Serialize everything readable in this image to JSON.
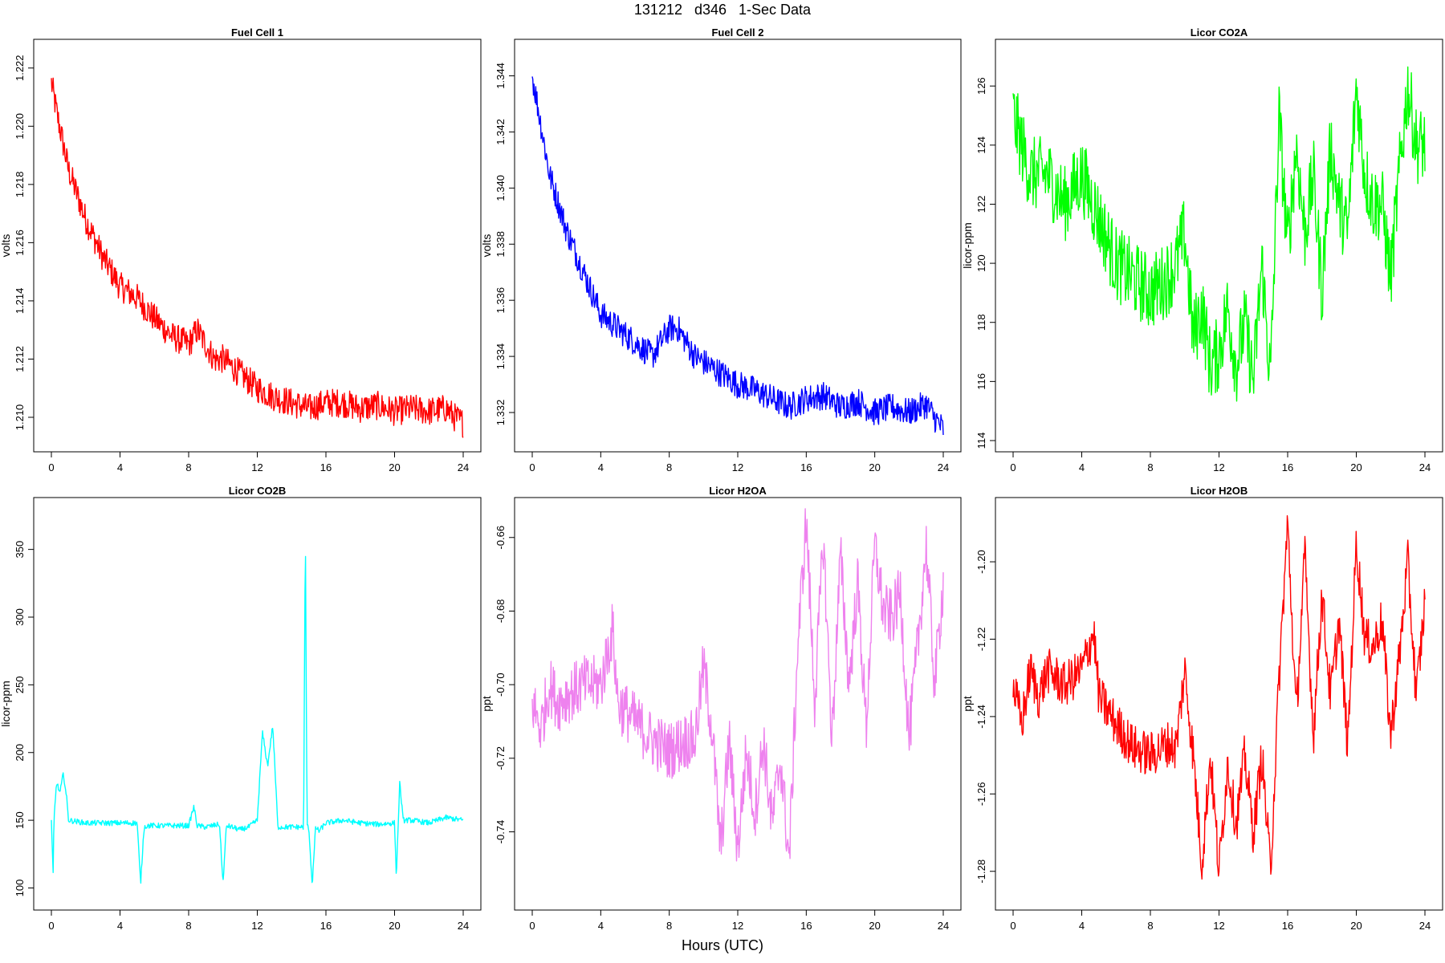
{
  "figure": {
    "title": "131212   d346   1-Sec Data",
    "xlabel": "Hours (UTC)"
  },
  "chart_data": [
    {
      "type": "line",
      "title": "Fuel Cell 1",
      "ylabel": "volts",
      "color": "#ff0000",
      "xlim": [
        0,
        24
      ],
      "ylim": [
        1.2092,
        1.2226
      ],
      "xticks": [
        0,
        4,
        8,
        12,
        16,
        20,
        24
      ],
      "yticks": [
        1.21,
        1.212,
        1.214,
        1.216,
        1.218,
        1.22,
        1.222
      ],
      "ytick_labels": [
        "1.210",
        "1.212",
        "1.214",
        "1.216",
        "1.218",
        "1.220",
        "1.222"
      ],
      "x": [
        0,
        0.3,
        1,
        2,
        3,
        4,
        5,
        6,
        7,
        8,
        8.5,
        9.5,
        10,
        11,
        12,
        13,
        14,
        15,
        16,
        17,
        18,
        19,
        20,
        21,
        22,
        23,
        23.5,
        24
      ],
      "y": [
        1.2215,
        1.2205,
        1.2185,
        1.2168,
        1.2155,
        1.2145,
        1.2141,
        1.2134,
        1.2128,
        1.2125,
        1.213,
        1.212,
        1.212,
        1.2115,
        1.211,
        1.2107,
        1.2105,
        1.2103,
        1.2105,
        1.2105,
        1.2103,
        1.2104,
        1.2102,
        1.2103,
        1.2102,
        1.2103,
        1.21,
        1.2098
      ],
      "noise": 0.0005
    },
    {
      "type": "line",
      "title": "Fuel Cell 2",
      "ylabel": "volts",
      "color": "#0000ff",
      "xlim": [
        0,
        24
      ],
      "ylim": [
        1.331,
        1.3449
      ],
      "xticks": [
        0,
        4,
        8,
        12,
        16,
        20,
        24
      ],
      "yticks": [
        1.332,
        1.334,
        1.336,
        1.338,
        1.34,
        1.342,
        1.344
      ],
      "ytick_labels": [
        "1.332",
        "1.334",
        "1.336",
        "1.338",
        "1.340",
        "1.342",
        "1.344"
      ],
      "x": [
        0,
        0.3,
        1,
        2,
        3,
        4,
        5,
        6,
        7,
        8,
        8.5,
        9.5,
        10,
        11,
        12,
        13,
        14,
        15,
        16,
        17,
        18,
        19,
        20,
        21,
        22,
        23,
        23.5,
        24
      ],
      "y": [
        1.344,
        1.343,
        1.3405,
        1.3385,
        1.337,
        1.3355,
        1.335,
        1.3345,
        1.334,
        1.335,
        1.335,
        1.334,
        1.3338,
        1.3334,
        1.333,
        1.3328,
        1.3325,
        1.3322,
        1.3325,
        1.3326,
        1.3322,
        1.3324,
        1.332,
        1.3322,
        1.332,
        1.3323,
        1.3318,
        1.3314
      ],
      "noise": 0.0005
    },
    {
      "type": "line",
      "title": "Licor CO2A",
      "ylabel": "licor-ppm",
      "color": "#00ff00",
      "xlim": [
        0,
        24
      ],
      "ylim": [
        114,
        127.2
      ],
      "xticks": [
        0,
        4,
        8,
        12,
        16,
        20,
        24
      ],
      "yticks": [
        114,
        116,
        118,
        120,
        122,
        124,
        126
      ],
      "ytick_labels": [
        "114",
        "116",
        "118",
        "120",
        "122",
        "124",
        "126"
      ],
      "x": [
        0,
        1,
        2,
        3,
        4,
        5,
        6,
        7,
        8,
        9,
        9.5,
        10,
        10.5,
        11,
        11.5,
        12,
        12.5,
        13,
        13.5,
        14,
        14.5,
        15,
        15.5,
        16,
        16.5,
        17,
        17.5,
        18,
        18.5,
        19,
        19.5,
        20,
        20.5,
        21,
        21.5,
        22,
        22.5,
        23,
        23.5,
        24
      ],
      "y": [
        125,
        123,
        123,
        122,
        123,
        121.5,
        120,
        119.5,
        119,
        119.5,
        120,
        121,
        117.5,
        118.5,
        116.5,
        117,
        118.5,
        116.5,
        118,
        116,
        120,
        116,
        125,
        120.5,
        124,
        121,
        123,
        119,
        124,
        122,
        121,
        126,
        123,
        122,
        122,
        119.5,
        123,
        126,
        124,
        124
      ],
      "noise": 1.3
    },
    {
      "type": "line",
      "title": "Licor CO2B",
      "ylabel": "licor-ppm",
      "color": "#00ffff",
      "xlim": [
        0,
        24
      ],
      "ylim": [
        92,
        380
      ],
      "xticks": [
        0,
        4,
        8,
        12,
        16,
        20,
        24
      ],
      "yticks": [
        100,
        150,
        200,
        250,
        300,
        350
      ],
      "ytick_labels": [
        "100",
        "150",
        "200",
        "250",
        "300",
        "350"
      ],
      "x": [
        0,
        0.1,
        0.15,
        0.3,
        0.5,
        0.7,
        0.9,
        1,
        2,
        4,
        5,
        5.2,
        5.4,
        5.6,
        6,
        8,
        8.3,
        8.5,
        9,
        9.8,
        10,
        10.2,
        10.5,
        11,
        11.5,
        12,
        12.3,
        12.6,
        12.9,
        13.2,
        14,
        14.7,
        14.8,
        14.9,
        15,
        15.2,
        15.4,
        15.6,
        16,
        17,
        18,
        19,
        20,
        20.1,
        20.3,
        20.5,
        21,
        22,
        23,
        24
      ],
      "y": [
        150,
        108,
        150,
        178,
        170,
        185,
        165,
        150,
        148,
        148,
        148,
        103,
        145,
        146,
        146,
        146,
        160,
        146,
        145,
        147,
        103,
        146,
        145,
        143,
        145,
        150,
        215,
        190,
        220,
        145,
        145,
        145,
        370,
        145,
        145,
        102,
        145,
        142,
        148,
        150,
        148,
        147,
        148,
        108,
        178,
        150,
        150,
        148,
        152,
        150
      ],
      "noise": 2
    },
    {
      "type": "line",
      "title": "Licor H2OA",
      "ylabel": "ppt",
      "color": "#ee82ee",
      "xlim": [
        0,
        24
      ],
      "ylim": [
        -0.7582,
        -0.6522
      ],
      "xticks": [
        0,
        4,
        8,
        12,
        16,
        20,
        24
      ],
      "yticks": [
        -0.74,
        -0.72,
        -0.7,
        -0.68,
        -0.66
      ],
      "ytick_labels": [
        "-0.74",
        "-0.72",
        "-0.70",
        "-0.68",
        "-0.66"
      ],
      "x": [
        0,
        0.5,
        1,
        1.5,
        2,
        3,
        4,
        4.7,
        5,
        6,
        7,
        8,
        9,
        9.5,
        10,
        10.5,
        11,
        11.5,
        12,
        12.5,
        13,
        13.5,
        14,
        14.5,
        15,
        15.5,
        16,
        16.5,
        17,
        17.5,
        18,
        18.5,
        19,
        19.5,
        20,
        20.5,
        21,
        21.5,
        22,
        22.5,
        23,
        23.5,
        24
      ],
      "y": [
        -0.705,
        -0.712,
        -0.7,
        -0.705,
        -0.703,
        -0.7,
        -0.7,
        -0.685,
        -0.705,
        -0.71,
        -0.715,
        -0.718,
        -0.715,
        -0.715,
        -0.695,
        -0.712,
        -0.745,
        -0.715,
        -0.745,
        -0.718,
        -0.735,
        -0.715,
        -0.738,
        -0.72,
        -0.748,
        -0.69,
        -0.655,
        -0.705,
        -0.66,
        -0.715,
        -0.665,
        -0.7,
        -0.672,
        -0.712,
        -0.662,
        -0.68,
        -0.682,
        -0.675,
        -0.715,
        -0.69,
        -0.662,
        -0.7,
        -0.672
      ],
      "noise": 0.008
    },
    {
      "type": "line",
      "title": "Licor H2OB",
      "ylabel": "ppt",
      "color": "#ff0000",
      "xlim": [
        0,
        24
      ],
      "ylim": [
        -1.2871,
        -1.1863
      ],
      "xticks": [
        0,
        4,
        8,
        12,
        16,
        20,
        24
      ],
      "yticks": [
        -1.28,
        -1.26,
        -1.24,
        -1.22,
        -1.2
      ],
      "ytick_labels": [
        "-1.28",
        "-1.26",
        "-1.24",
        "-1.22",
        "-1.20"
      ],
      "x": [
        0,
        0.5,
        1,
        1.5,
        2,
        3,
        4,
        4.7,
        5,
        6,
        7,
        8,
        9,
        9.5,
        10,
        10.5,
        11,
        11.5,
        12,
        12.5,
        13,
        13.5,
        14,
        14.5,
        15,
        15.5,
        16,
        16.5,
        17,
        17.5,
        18,
        18.5,
        19,
        19.5,
        20,
        20.5,
        21,
        21.5,
        22,
        22.5,
        23,
        23.5,
        24
      ],
      "y": [
        -1.232,
        -1.242,
        -1.228,
        -1.235,
        -1.228,
        -1.232,
        -1.228,
        -1.218,
        -1.235,
        -1.242,
        -1.248,
        -1.25,
        -1.247,
        -1.248,
        -1.228,
        -1.25,
        -1.278,
        -1.25,
        -1.28,
        -1.252,
        -1.268,
        -1.25,
        -1.27,
        -1.25,
        -1.28,
        -1.23,
        -1.19,
        -1.24,
        -1.198,
        -1.245,
        -1.208,
        -1.235,
        -1.215,
        -1.248,
        -1.195,
        -1.22,
        -1.222,
        -1.215,
        -1.245,
        -1.225,
        -1.2,
        -1.235,
        -1.21
      ],
      "noise": 0.006
    }
  ]
}
